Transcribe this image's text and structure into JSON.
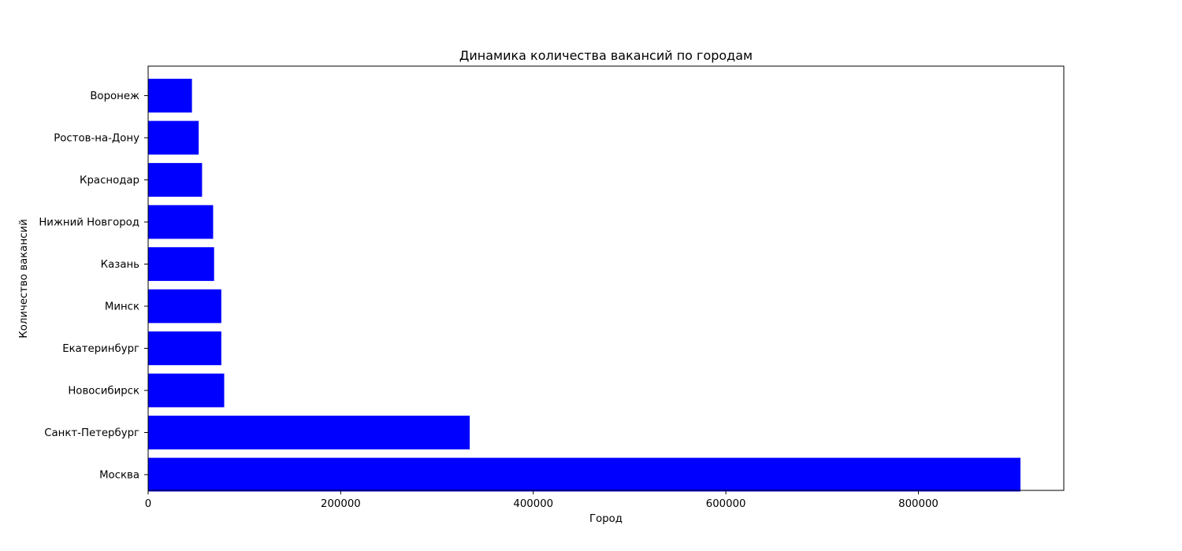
{
  "chart_data": {
    "type": "bar",
    "orientation": "horizontal",
    "title": "Динамика количества вакансий по городам",
    "xlabel": "Город",
    "ylabel": "Количество вакансий",
    "categories": [
      "Москва",
      "Санкт-Петербург",
      "Новосибирск",
      "Екатеринбург",
      "Минск",
      "Казань",
      "Нижний Новгород",
      "Краснодар",
      "Ростов-на-Дону",
      "Воронеж"
    ],
    "values": [
      906000,
      334000,
      79000,
      76000,
      76000,
      68500,
      67500,
      56000,
      52500,
      45500
    ],
    "xlim": [
      0,
      951000
    ],
    "xticks": [
      0,
      200000,
      400000,
      600000,
      800000
    ],
    "xtick_labels": [
      "0",
      "200000",
      "400000",
      "600000",
      "800000"
    ],
    "bar_color": "#0000ff",
    "grid": false,
    "legend": "none"
  }
}
